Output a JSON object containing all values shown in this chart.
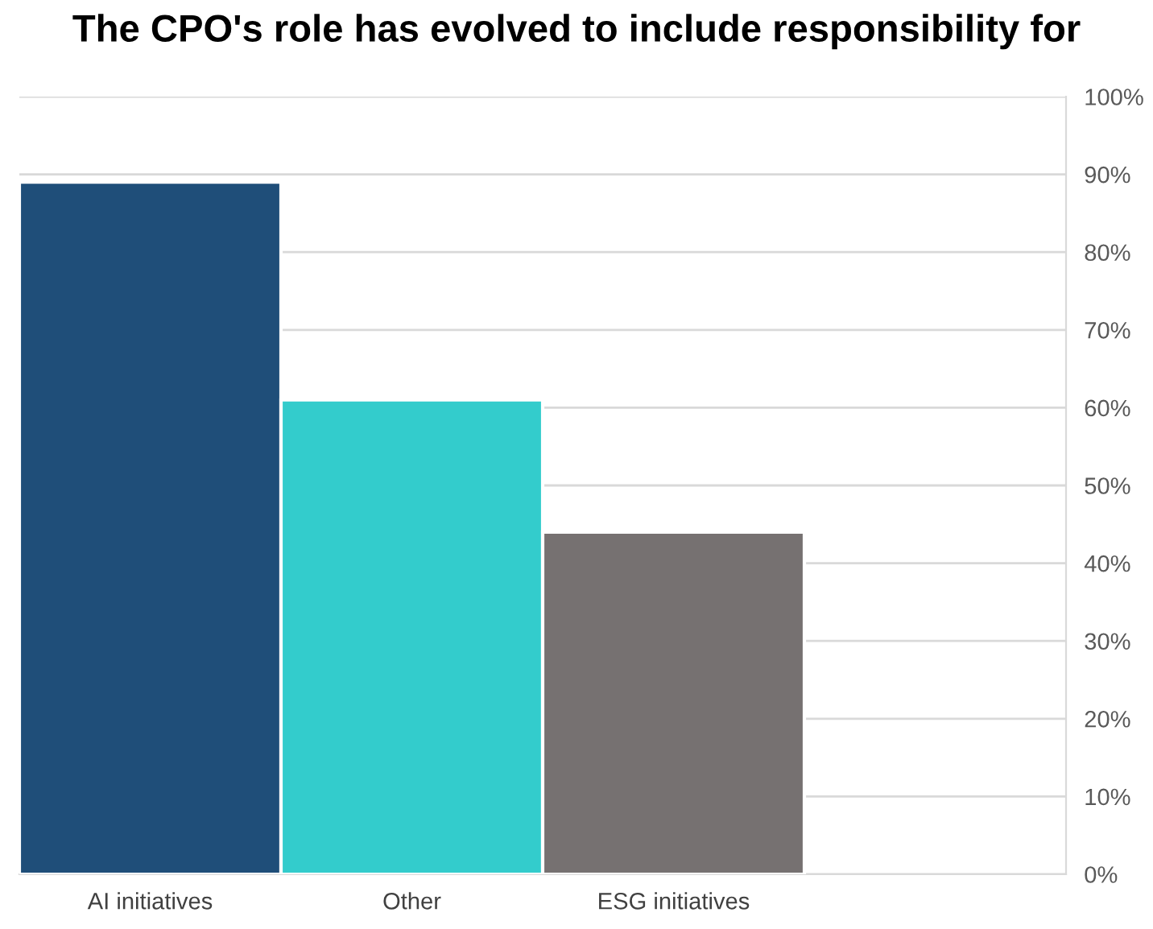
{
  "chart_data": {
    "type": "bar",
    "title": "The CPO's role has evolved to include responsibility for",
    "categories": [
      "AI initiatives",
      "Other",
      "ESG initiatives",
      null
    ],
    "values": [
      89,
      61,
      44,
      null
    ],
    "colors": [
      "#1f4e79",
      "#33cccc",
      "#767171",
      "#767171"
    ],
    "ylim": [
      0,
      100
    ],
    "yticks": [
      {
        "value": 0,
        "label": "0%"
      },
      {
        "value": 10,
        "label": "10%"
      },
      {
        "value": 20,
        "label": "20%"
      },
      {
        "value": 30,
        "label": "30%"
      },
      {
        "value": 40,
        "label": "40%"
      },
      {
        "value": 50,
        "label": "50%"
      },
      {
        "value": 60,
        "label": "60%"
      },
      {
        "value": 70,
        "label": "70%"
      },
      {
        "value": 80,
        "label": "80%"
      },
      {
        "value": 90,
        "label": "90%"
      },
      {
        "value": 100,
        "label": "100%"
      }
    ],
    "grid": "y"
  }
}
